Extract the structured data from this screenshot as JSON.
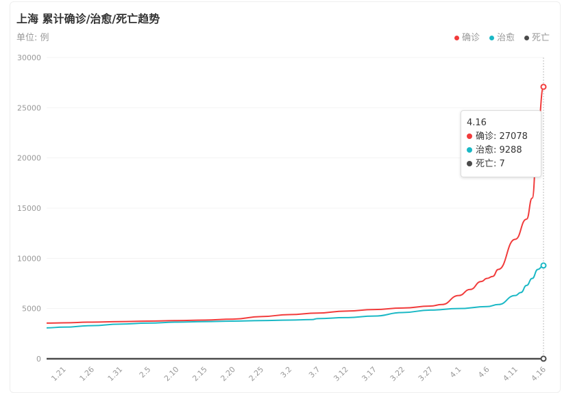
{
  "title": "上海 累计确诊/治愈/死亡趋势",
  "unit": "单位: 例",
  "colors": {
    "confirmed": "#f13b3b",
    "cured": "#1ab8c5",
    "dead": "#4a4a4a"
  },
  "legend": [
    {
      "label": "确诊"
    },
    {
      "label": "治愈"
    },
    {
      "label": "死亡"
    }
  ],
  "tooltip": {
    "date": "4.16",
    "rows": [
      {
        "label": "确诊: 27078"
      },
      {
        "label": "治愈: 9288"
      },
      {
        "label": "死亡: 7"
      }
    ]
  },
  "chart_data": {
    "type": "line",
    "title": "上海 累计确诊/治愈/死亡趋势",
    "ylabel": "单位: 例",
    "ylim": [
      0,
      30000
    ],
    "yticks": [
      "0",
      "5000",
      "10000",
      "15000",
      "20000",
      "25000",
      "30000"
    ],
    "xticks": [
      "1.21",
      "1.26",
      "1.31",
      "2.5",
      "2.10",
      "2.15",
      "2.20",
      "2.25",
      "3.2",
      "3.7",
      "3.12",
      "3.17",
      "3.22",
      "3.27",
      "4.1",
      "4.6",
      "4.11",
      "4.16"
    ],
    "xrange": [
      "1.18",
      "4.16"
    ],
    "legend_position": "top-right",
    "grid": true,
    "series": [
      {
        "name": "确诊",
        "points": [
          [
            "1.18",
            3550
          ],
          [
            "1.21",
            3580
          ],
          [
            "1.26",
            3650
          ],
          [
            "1.31",
            3700
          ],
          [
            "2.5",
            3750
          ],
          [
            "2.10",
            3800
          ],
          [
            "2.15",
            3850
          ],
          [
            "2.20",
            3950
          ],
          [
            "2.25",
            4200
          ],
          [
            "3.2",
            4400
          ],
          [
            "3.7",
            4550
          ],
          [
            "3.12",
            4750
          ],
          [
            "3.17",
            4900
          ],
          [
            "3.22",
            5050
          ],
          [
            "3.27",
            5250
          ],
          [
            "3.29",
            5400
          ],
          [
            "4.1",
            6300
          ],
          [
            "4.3",
            6900
          ],
          [
            "4.5",
            7700
          ],
          [
            "4.6",
            8000
          ],
          [
            "4.7",
            8200
          ],
          [
            "4.8",
            8900
          ],
          [
            "4.11",
            11900
          ],
          [
            "4.13",
            13900
          ],
          [
            "4.14",
            16000
          ],
          [
            "4.15",
            23000
          ],
          [
            "4.16",
            27078
          ]
        ]
      },
      {
        "name": "治愈",
        "points": [
          [
            "1.18",
            3080
          ],
          [
            "1.21",
            3150
          ],
          [
            "1.26",
            3300
          ],
          [
            "1.31",
            3450
          ],
          [
            "2.5",
            3550
          ],
          [
            "2.10",
            3650
          ],
          [
            "2.15",
            3700
          ],
          [
            "2.20",
            3750
          ],
          [
            "2.25",
            3800
          ],
          [
            "3.2",
            3850
          ],
          [
            "3.6",
            3900
          ],
          [
            "3.7",
            4000
          ],
          [
            "3.12",
            4100
          ],
          [
            "3.17",
            4250
          ],
          [
            "3.22",
            4600
          ],
          [
            "3.27",
            4850
          ],
          [
            "4.1",
            5000
          ],
          [
            "4.6",
            5200
          ],
          [
            "4.8",
            5400
          ],
          [
            "4.11",
            6300
          ],
          [
            "4.12",
            6600
          ],
          [
            "4.13",
            7300
          ],
          [
            "4.14",
            8000
          ],
          [
            "4.15",
            8900
          ],
          [
            "4.16",
            9288
          ]
        ]
      },
      {
        "name": "死亡",
        "points": [
          [
            "1.18",
            0
          ],
          [
            "4.15",
            0
          ],
          [
            "4.16",
            7
          ]
        ]
      }
    ]
  }
}
